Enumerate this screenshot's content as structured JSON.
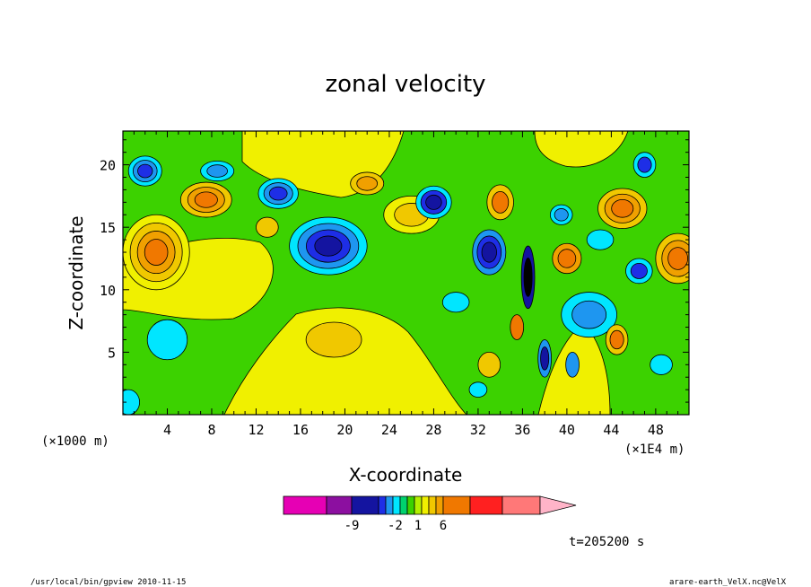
{
  "chart_data": {
    "type": "heatmap",
    "title": "zonal velocity",
    "xlabel": "X-coordinate",
    "ylabel": "Z-coordinate",
    "x_unit_left": "(×1000 m)",
    "x_unit_right": "(×1E4 m)",
    "xlim": [
      0,
      51
    ],
    "ylim": [
      0,
      22.7
    ],
    "xticks": [
      4,
      8,
      12,
      16,
      20,
      24,
      28,
      32,
      36,
      40,
      44,
      48
    ],
    "yticks": [
      5,
      10,
      15,
      20
    ],
    "colorbar": {
      "colors": [
        "#e600b4",
        "#8c0fa0",
        "#1414a0",
        "#1e2ee6",
        "#1e96f0",
        "#00e6ff",
        "#00d26e",
        "#3cd200",
        "#b4f000",
        "#f0f000",
        "#f0c800",
        "#f0a000",
        "#f07800",
        "#ff2020",
        "#ff7878",
        "#ffb4c8"
      ],
      "labels": [
        {
          "text": "-9",
          "index": 2
        },
        {
          "text": "-2",
          "index": 5.3
        },
        {
          "text": "1",
          "index": 8.5
        },
        {
          "text": "6",
          "index": 12
        }
      ]
    },
    "blobs": [
      {
        "x": 18.5,
        "z": 13.5,
        "rx": 3.5,
        "rz": 2.3,
        "levels": [
          "#00e6ff",
          "#1e96f0",
          "#1e2ee6",
          "#1414a0"
        ]
      },
      {
        "x": 14,
        "z": 17.7,
        "rx": 1.8,
        "rz": 1.2,
        "levels": [
          "#00e6ff",
          "#1e96f0",
          "#1e2ee6"
        ]
      },
      {
        "x": 3,
        "z": 13,
        "rx": 3,
        "rz": 3,
        "levels": [
          "#f0f000",
          "#f0c800",
          "#f0a000",
          "#f07800"
        ]
      },
      {
        "x": 7.5,
        "z": 17.2,
        "rx": 2.3,
        "rz": 1.4,
        "levels": [
          "#f0c800",
          "#f0a000",
          "#f07800"
        ]
      },
      {
        "x": 2,
        "z": 19.5,
        "rx": 1.5,
        "rz": 1.2,
        "levels": [
          "#00e6ff",
          "#1e96f0",
          "#1e2ee6"
        ]
      },
      {
        "x": 8.5,
        "z": 19.5,
        "rx": 1.5,
        "rz": 0.8,
        "levels": [
          "#00e6ff",
          "#1e96f0"
        ]
      },
      {
        "x": 4,
        "z": 6,
        "rx": 1.8,
        "rz": 1.6,
        "levels": [
          "#00e6ff"
        ]
      },
      {
        "x": 26,
        "z": 16,
        "rx": 2.5,
        "rz": 1.5,
        "levels": [
          "#f0f000",
          "#f0c800"
        ]
      },
      {
        "x": 28,
        "z": 17,
        "rx": 1.6,
        "rz": 1.3,
        "levels": [
          "#00e6ff",
          "#1e2ee6",
          "#1414a0"
        ]
      },
      {
        "x": 19,
        "z": 6,
        "rx": 2.5,
        "rz": 1.4,
        "levels": [
          "#f0c800"
        ]
      },
      {
        "x": 13,
        "z": 15,
        "rx": 1,
        "rz": 0.8,
        "levels": [
          "#f0c800"
        ]
      },
      {
        "x": 33,
        "z": 13,
        "rx": 1.5,
        "rz": 1.8,
        "levels": [
          "#1e96f0",
          "#1e2ee6",
          "#1414a0"
        ]
      },
      {
        "x": 36.5,
        "z": 11,
        "rx": 0.6,
        "rz": 2.5,
        "levels": [
          "#1414a0",
          "#000000"
        ]
      },
      {
        "x": 34,
        "z": 17,
        "rx": 1.2,
        "rz": 1.4,
        "levels": [
          "#f0c800",
          "#f07800"
        ]
      },
      {
        "x": 40,
        "z": 12.5,
        "rx": 1.3,
        "rz": 1.2,
        "levels": [
          "#f0a000",
          "#f07800"
        ]
      },
      {
        "x": 45,
        "z": 16.5,
        "rx": 2.2,
        "rz": 1.6,
        "levels": [
          "#f0c800",
          "#f0a000",
          "#f07800"
        ]
      },
      {
        "x": 50,
        "z": 12.5,
        "rx": 2,
        "rz": 2,
        "levels": [
          "#f0c800",
          "#f0a000",
          "#f07800"
        ]
      },
      {
        "x": 42,
        "z": 8,
        "rx": 2.5,
        "rz": 1.8,
        "levels": [
          "#00e6ff",
          "#1e96f0"
        ]
      },
      {
        "x": 46.5,
        "z": 11.5,
        "rx": 1.2,
        "rz": 1,
        "levels": [
          "#00e6ff",
          "#1e2ee6"
        ]
      },
      {
        "x": 47,
        "z": 20,
        "rx": 1,
        "rz": 1,
        "levels": [
          "#00e6ff",
          "#1e2ee6"
        ]
      },
      {
        "x": 44.5,
        "z": 6,
        "rx": 1,
        "rz": 1.2,
        "levels": [
          "#f0c800",
          "#f07800"
        ]
      },
      {
        "x": 48.5,
        "z": 4,
        "rx": 1,
        "rz": 0.8,
        "levels": [
          "#00e6ff"
        ]
      },
      {
        "x": 30,
        "z": 9,
        "rx": 1.2,
        "rz": 0.8,
        "levels": [
          "#00e6ff"
        ]
      },
      {
        "x": 33,
        "z": 4,
        "rx": 1,
        "rz": 1,
        "levels": [
          "#f0c800"
        ]
      },
      {
        "x": 38,
        "z": 4.5,
        "rx": 0.6,
        "rz": 1.5,
        "levels": [
          "#1e96f0",
          "#1414a0"
        ]
      },
      {
        "x": 39.5,
        "z": 16,
        "rx": 1,
        "rz": 0.8,
        "levels": [
          "#00e6ff",
          "#1e96f0"
        ]
      },
      {
        "x": 43,
        "z": 14,
        "rx": 1.2,
        "rz": 0.8,
        "levels": [
          "#00e6ff"
        ]
      },
      {
        "x": 22,
        "z": 18.5,
        "rx": 1.5,
        "rz": 0.9,
        "levels": [
          "#f0c800",
          "#f0a000"
        ]
      },
      {
        "x": 0.5,
        "z": 1,
        "rx": 1,
        "rz": 1,
        "levels": [
          "#00e6ff"
        ]
      },
      {
        "x": 32,
        "z": 2,
        "rx": 0.8,
        "rz": 0.6,
        "levels": [
          "#00e6ff"
        ]
      },
      {
        "x": 35.5,
        "z": 7,
        "rx": 0.6,
        "rz": 1,
        "levels": [
          "#f07800"
        ]
      },
      {
        "x": 40.5,
        "z": 4,
        "rx": 0.6,
        "rz": 1,
        "levels": [
          "#1e96f0"
        ]
      }
    ]
  },
  "time_label": "t=205200 s",
  "footer_left": "/usr/local/bin/gpview  2010-11-15",
  "footer_right": "arare-earth_VelX.nc@VelX"
}
